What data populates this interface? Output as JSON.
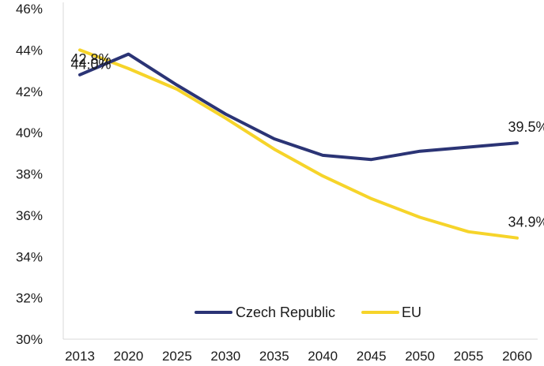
{
  "chart_data": {
    "type": "line",
    "title": "",
    "xlabel": "",
    "ylabel": "",
    "categories": [
      "2013",
      "2020",
      "2025",
      "2030",
      "2035",
      "2040",
      "2045",
      "2050",
      "2055",
      "2060"
    ],
    "ylim": [
      30,
      46
    ],
    "yticks": [
      "30%",
      "32%",
      "34%",
      "36%",
      "38%",
      "40%",
      "42%",
      "44%",
      "46%"
    ],
    "ytick_values": [
      30,
      32,
      34,
      36,
      38,
      40,
      42,
      44,
      46
    ],
    "grid": false,
    "legend_position": "bottom-center",
    "series": [
      {
        "name": "Czech Republic",
        "color": "#2b3475",
        "values": [
          42.8,
          43.8,
          42.3,
          40.9,
          39.7,
          38.9,
          38.7,
          39.1,
          39.3,
          39.5
        ]
      },
      {
        "name": "EU",
        "color": "#f6d42a",
        "values": [
          44.0,
          43.1,
          42.1,
          40.7,
          39.2,
          37.9,
          36.8,
          35.9,
          35.2,
          34.9
        ]
      }
    ],
    "annotations": [
      {
        "text": "42.8%",
        "series": 0,
        "index": 0,
        "placement": "above"
      },
      {
        "text": "44.0%",
        "series": 1,
        "index": 0,
        "placement": "below"
      },
      {
        "text": "39.5%",
        "series": 0,
        "index": 9,
        "placement": "above"
      },
      {
        "text": "34.9%",
        "series": 1,
        "index": 9,
        "placement": "above"
      }
    ]
  }
}
